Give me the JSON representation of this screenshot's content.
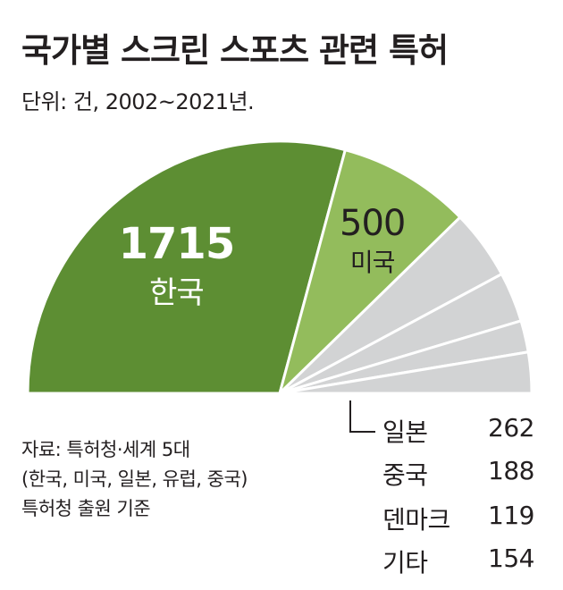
{
  "title": "국가별 스크린 스포츠 관련 특허",
  "subtitle": "단위: 건, 2002~2021년.",
  "chart_data": {
    "type": "pie",
    "shape": "semicircle",
    "categories": [
      "한국",
      "미국",
      "일본",
      "중국",
      "덴마크",
      "기타"
    ],
    "values": [
      1715,
      500,
      262,
      188,
      119,
      154
    ],
    "value_labels": [
      "1715",
      "500",
      "262",
      "188",
      "119",
      "154"
    ],
    "colors": [
      "#5d8e33",
      "#93bc5c",
      "#d2d3d4",
      "#d2d3d4",
      "#d2d3d4",
      "#d2d3d4"
    ]
  },
  "source": {
    "lines": [
      "자료: 특허청·세계 5대",
      "(한국, 미국, 일본, 유럽, 중국)",
      "특허청 출원 기준"
    ]
  }
}
